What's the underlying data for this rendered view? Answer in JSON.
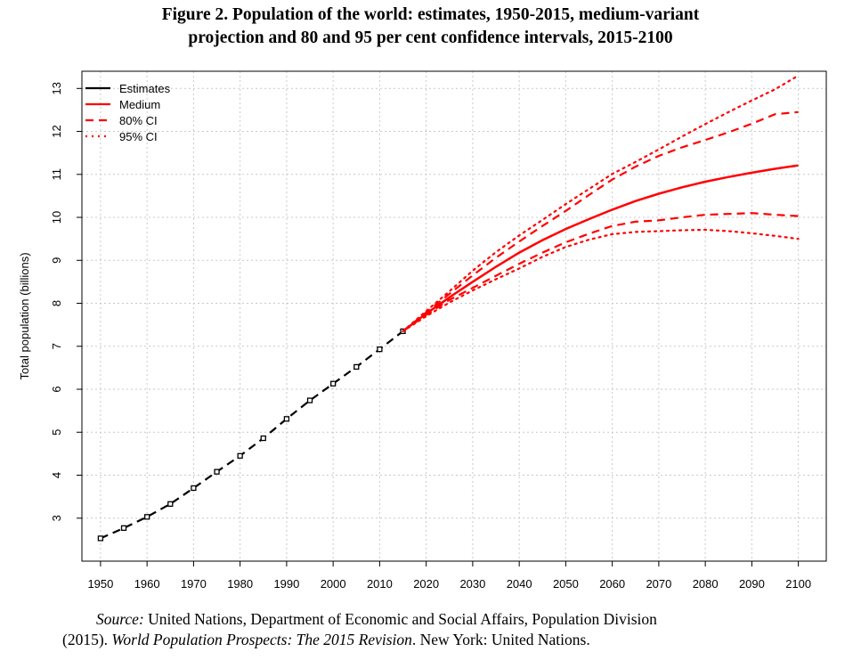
{
  "figure": {
    "title_line1": "Figure 2.  Population of the world: estimates, 1950-2015, medium-variant",
    "title_line2": "projection and 80 and 95 per cent confidence intervals, 2015-2100"
  },
  "source": {
    "label": "Source:",
    "line1_rest": " United Nations, Department of Economic and Social Affairs, Population Division",
    "line2_start": "(2015). ",
    "line2_title": "World Population Prospects: The 2015 Revision",
    "line2_end": ". New York: United Nations."
  },
  "colors": {
    "estimates": "#000000",
    "projection": "#ff0000",
    "grid": "#c8c8c8"
  },
  "chart_data": {
    "type": "line",
    "title": "",
    "xlabel": "",
    "ylabel": "Total population (billions)",
    "xlim": [
      1946,
      2106
    ],
    "ylim": [
      2.0,
      13.4
    ],
    "xticks": [
      1950,
      1960,
      1970,
      1980,
      1990,
      2000,
      2010,
      2020,
      2030,
      2040,
      2050,
      2060,
      2070,
      2080,
      2090,
      2100
    ],
    "yticks": [
      3,
      4,
      5,
      6,
      7,
      8,
      9,
      10,
      11,
      12,
      13
    ],
    "grid": true,
    "legend_position": "top-left",
    "legend": [
      "Estimates",
      "Medium",
      "80% CI",
      "95% CI"
    ],
    "series": [
      {
        "name": "Estimates",
        "style": "dashed",
        "color": "#000000",
        "markers": true,
        "x": [
          1950,
          1955,
          1960,
          1965,
          1970,
          1975,
          1980,
          1985,
          1990,
          1995,
          2000,
          2005,
          2010,
          2015
        ],
        "y": [
          2.53,
          2.77,
          3.03,
          3.33,
          3.7,
          4.08,
          4.45,
          4.86,
          5.31,
          5.74,
          6.13,
          6.52,
          6.93,
          7.35
        ]
      },
      {
        "name": "Medium",
        "style": "solid",
        "color": "#ff0000",
        "x": [
          2015,
          2020,
          2025,
          2030,
          2035,
          2040,
          2045,
          2050,
          2055,
          2060,
          2065,
          2070,
          2075,
          2080,
          2085,
          2090,
          2095,
          2100
        ],
        "y": [
          7.35,
          7.76,
          8.14,
          8.5,
          8.85,
          9.18,
          9.47,
          9.73,
          9.96,
          10.18,
          10.38,
          10.55,
          10.7,
          10.83,
          10.94,
          11.04,
          11.13,
          11.21
        ]
      },
      {
        "name": "80% CI upper",
        "style": "dashed",
        "color": "#ff0000",
        "x": [
          2015,
          2020,
          2025,
          2030,
          2035,
          2040,
          2045,
          2050,
          2055,
          2060,
          2065,
          2070,
          2075,
          2080,
          2085,
          2090,
          2095,
          2100
        ],
        "y": [
          7.35,
          7.79,
          8.22,
          8.65,
          9.06,
          9.44,
          9.8,
          10.15,
          10.52,
          10.88,
          11.18,
          11.43,
          11.63,
          11.8,
          11.98,
          12.18,
          12.4,
          12.45
        ]
      },
      {
        "name": "80% CI lower",
        "style": "dashed",
        "color": "#ff0000",
        "x": [
          2015,
          2020,
          2025,
          2030,
          2035,
          2040,
          2045,
          2050,
          2055,
          2060,
          2065,
          2070,
          2075,
          2080,
          2085,
          2090,
          2095,
          2100
        ],
        "y": [
          7.35,
          7.73,
          8.08,
          8.36,
          8.64,
          8.92,
          9.18,
          9.42,
          9.62,
          9.8,
          9.9,
          9.93,
          10.0,
          10.06,
          10.08,
          10.1,
          10.06,
          10.03
        ]
      },
      {
        "name": "95% CI upper",
        "style": "dotted",
        "color": "#ff0000",
        "x": [
          2015,
          2020,
          2025,
          2030,
          2035,
          2040,
          2045,
          2050,
          2055,
          2060,
          2065,
          2070,
          2075,
          2080,
          2085,
          2090,
          2095,
          2100
        ],
        "y": [
          7.35,
          7.82,
          8.28,
          8.76,
          9.19,
          9.58,
          9.94,
          10.31,
          10.66,
          11.01,
          11.29,
          11.58,
          11.88,
          12.17,
          12.45,
          12.72,
          12.98,
          13.3
        ]
      },
      {
        "name": "95% CI lower",
        "style": "dotted",
        "color": "#ff0000",
        "x": [
          2015,
          2020,
          2025,
          2030,
          2035,
          2040,
          2045,
          2050,
          2055,
          2060,
          2065,
          2070,
          2075,
          2080,
          2085,
          2090,
          2095,
          2100
        ],
        "y": [
          7.35,
          7.7,
          8.02,
          8.3,
          8.56,
          8.81,
          9.08,
          9.31,
          9.48,
          9.61,
          9.66,
          9.68,
          9.7,
          9.71,
          9.68,
          9.63,
          9.57,
          9.5
        ]
      }
    ]
  }
}
